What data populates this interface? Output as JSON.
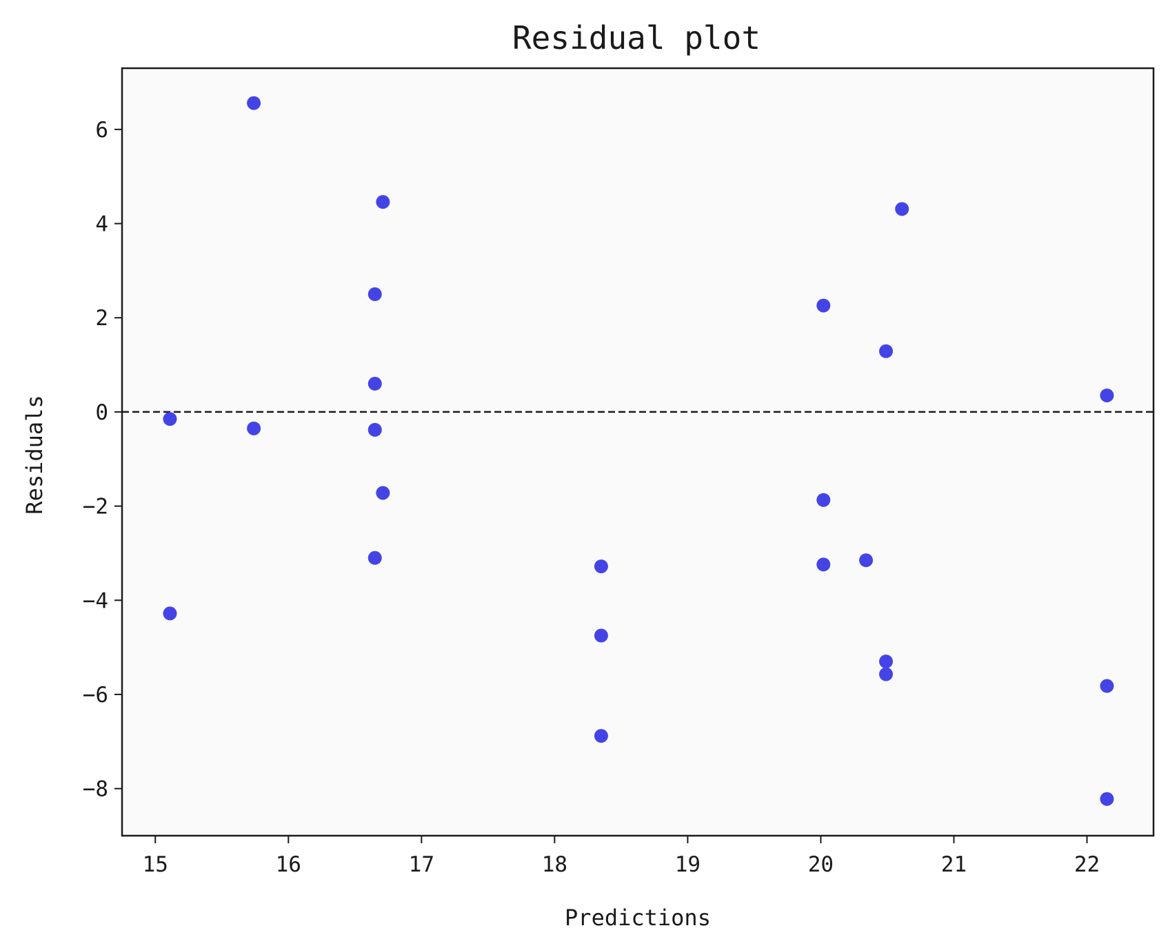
{
  "chart_data": {
    "type": "scatter",
    "title": "Residual plot",
    "xlabel": "Predictions",
    "ylabel": "Residuals",
    "xlim": [
      14.75,
      22.5
    ],
    "ylim": [
      -9.0,
      7.3
    ],
    "xticks": [
      15,
      16,
      17,
      18,
      19,
      20,
      21,
      22
    ],
    "yticks": [
      -8,
      -6,
      -4,
      -2,
      0,
      2,
      4,
      6
    ],
    "xtick_labels": [
      "15",
      "16",
      "17",
      "18",
      "19",
      "20",
      "21",
      "22"
    ],
    "ytick_labels": [
      "−8",
      "−6",
      "−4",
      "−2",
      "0",
      "2",
      "4",
      "6"
    ],
    "grid": false,
    "reference_line": {
      "y": 0,
      "style": "dashed",
      "color": "#1a1a1a"
    },
    "point_color": "#4444e6",
    "plot_background": "#fafafa",
    "points": [
      {
        "x": 15.11,
        "y": -0.15
      },
      {
        "x": 15.11,
        "y": -4.28
      },
      {
        "x": 15.74,
        "y": 6.56
      },
      {
        "x": 15.74,
        "y": -0.35
      },
      {
        "x": 16.65,
        "y": 2.5
      },
      {
        "x": 16.65,
        "y": 0.6
      },
      {
        "x": 16.65,
        "y": -0.38
      },
      {
        "x": 16.65,
        "y": -3.1
      },
      {
        "x": 16.71,
        "y": 4.46
      },
      {
        "x": 16.71,
        "y": -1.72
      },
      {
        "x": 18.35,
        "y": -3.28
      },
      {
        "x": 18.35,
        "y": -4.75
      },
      {
        "x": 18.35,
        "y": -6.88
      },
      {
        "x": 20.02,
        "y": 2.26
      },
      {
        "x": 20.02,
        "y": -1.87
      },
      {
        "x": 20.02,
        "y": -3.24
      },
      {
        "x": 20.34,
        "y": -3.15
      },
      {
        "x": 20.49,
        "y": 1.29
      },
      {
        "x": 20.49,
        "y": -5.3
      },
      {
        "x": 20.49,
        "y": -5.57
      },
      {
        "x": 20.61,
        "y": 4.31
      },
      {
        "x": 22.15,
        "y": 0.35
      },
      {
        "x": 22.15,
        "y": -5.82
      },
      {
        "x": 22.15,
        "y": -8.22
      }
    ]
  }
}
